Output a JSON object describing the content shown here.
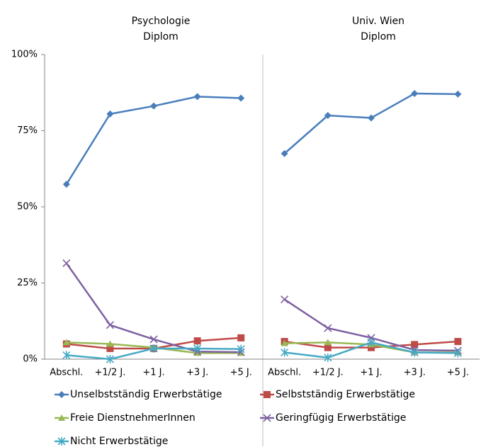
{
  "chart_data": [
    {
      "type": "line",
      "title": [
        "Psychologie",
        "Diplom"
      ],
      "categories": [
        "Abschl.",
        "+1/2 J.",
        "+1 J.",
        "+3 J.",
        "+5 J."
      ],
      "ylim": [
        0,
        100
      ],
      "yticks": [
        {
          "value": 0,
          "label": "0%"
        },
        {
          "value": 25,
          "label": "25%"
        },
        {
          "value": 50,
          "label": "50%"
        },
        {
          "value": 75,
          "label": "75%"
        },
        {
          "value": 100,
          "label": "100%"
        }
      ],
      "series": [
        {
          "name": "Unselbstständig Erwerbstätige",
          "color": "#4a7ebb",
          "marker": "diamond",
          "values": [
            57.4,
            80.5,
            83.1,
            86.2,
            85.7
          ]
        },
        {
          "name": "Selbstständig Erwerbstätige",
          "color": "#be4b48",
          "marker": "square",
          "values": [
            5,
            3.5,
            3.5,
            6,
            7
          ]
        },
        {
          "name": "Freie DienstnehmerInnen",
          "color": "#98b954",
          "marker": "triangle",
          "values": [
            5.5,
            5,
            3.8,
            2,
            2
          ]
        },
        {
          "name": "Geringfügig Erwerbstätige",
          "color": "#7d60a0",
          "marker": "x",
          "values": [
            31.5,
            11.2,
            6.5,
            2.5,
            2.3
          ]
        },
        {
          "name": "Nicht Erwerbstätige",
          "color": "#46aac5",
          "marker": "star",
          "values": [
            1.3,
            0,
            3.5,
            3.5,
            3.3
          ]
        }
      ]
    },
    {
      "type": "line",
      "title": [
        "Univ. Wien",
        "Diplom"
      ],
      "categories": [
        "Abschl.",
        "+1/2 J.",
        "+1 J.",
        "+3 J.",
        "+5 J."
      ],
      "ylim": [
        0,
        100
      ],
      "series": [
        {
          "values": [
            67.5,
            80,
            79.2,
            87.2,
            87
          ]
        },
        {
          "values": [
            5.8,
            3.8,
            3.8,
            4.8,
            5.8
          ]
        },
        {
          "values": [
            5.2,
            5.5,
            4.8,
            2.2,
            2.2
          ]
        },
        {
          "values": [
            19.6,
            10.2,
            7,
            3,
            2.8
          ]
        },
        {
          "values": [
            2.2,
            0.5,
            5.5,
            2.2,
            2
          ]
        }
      ]
    }
  ]
}
